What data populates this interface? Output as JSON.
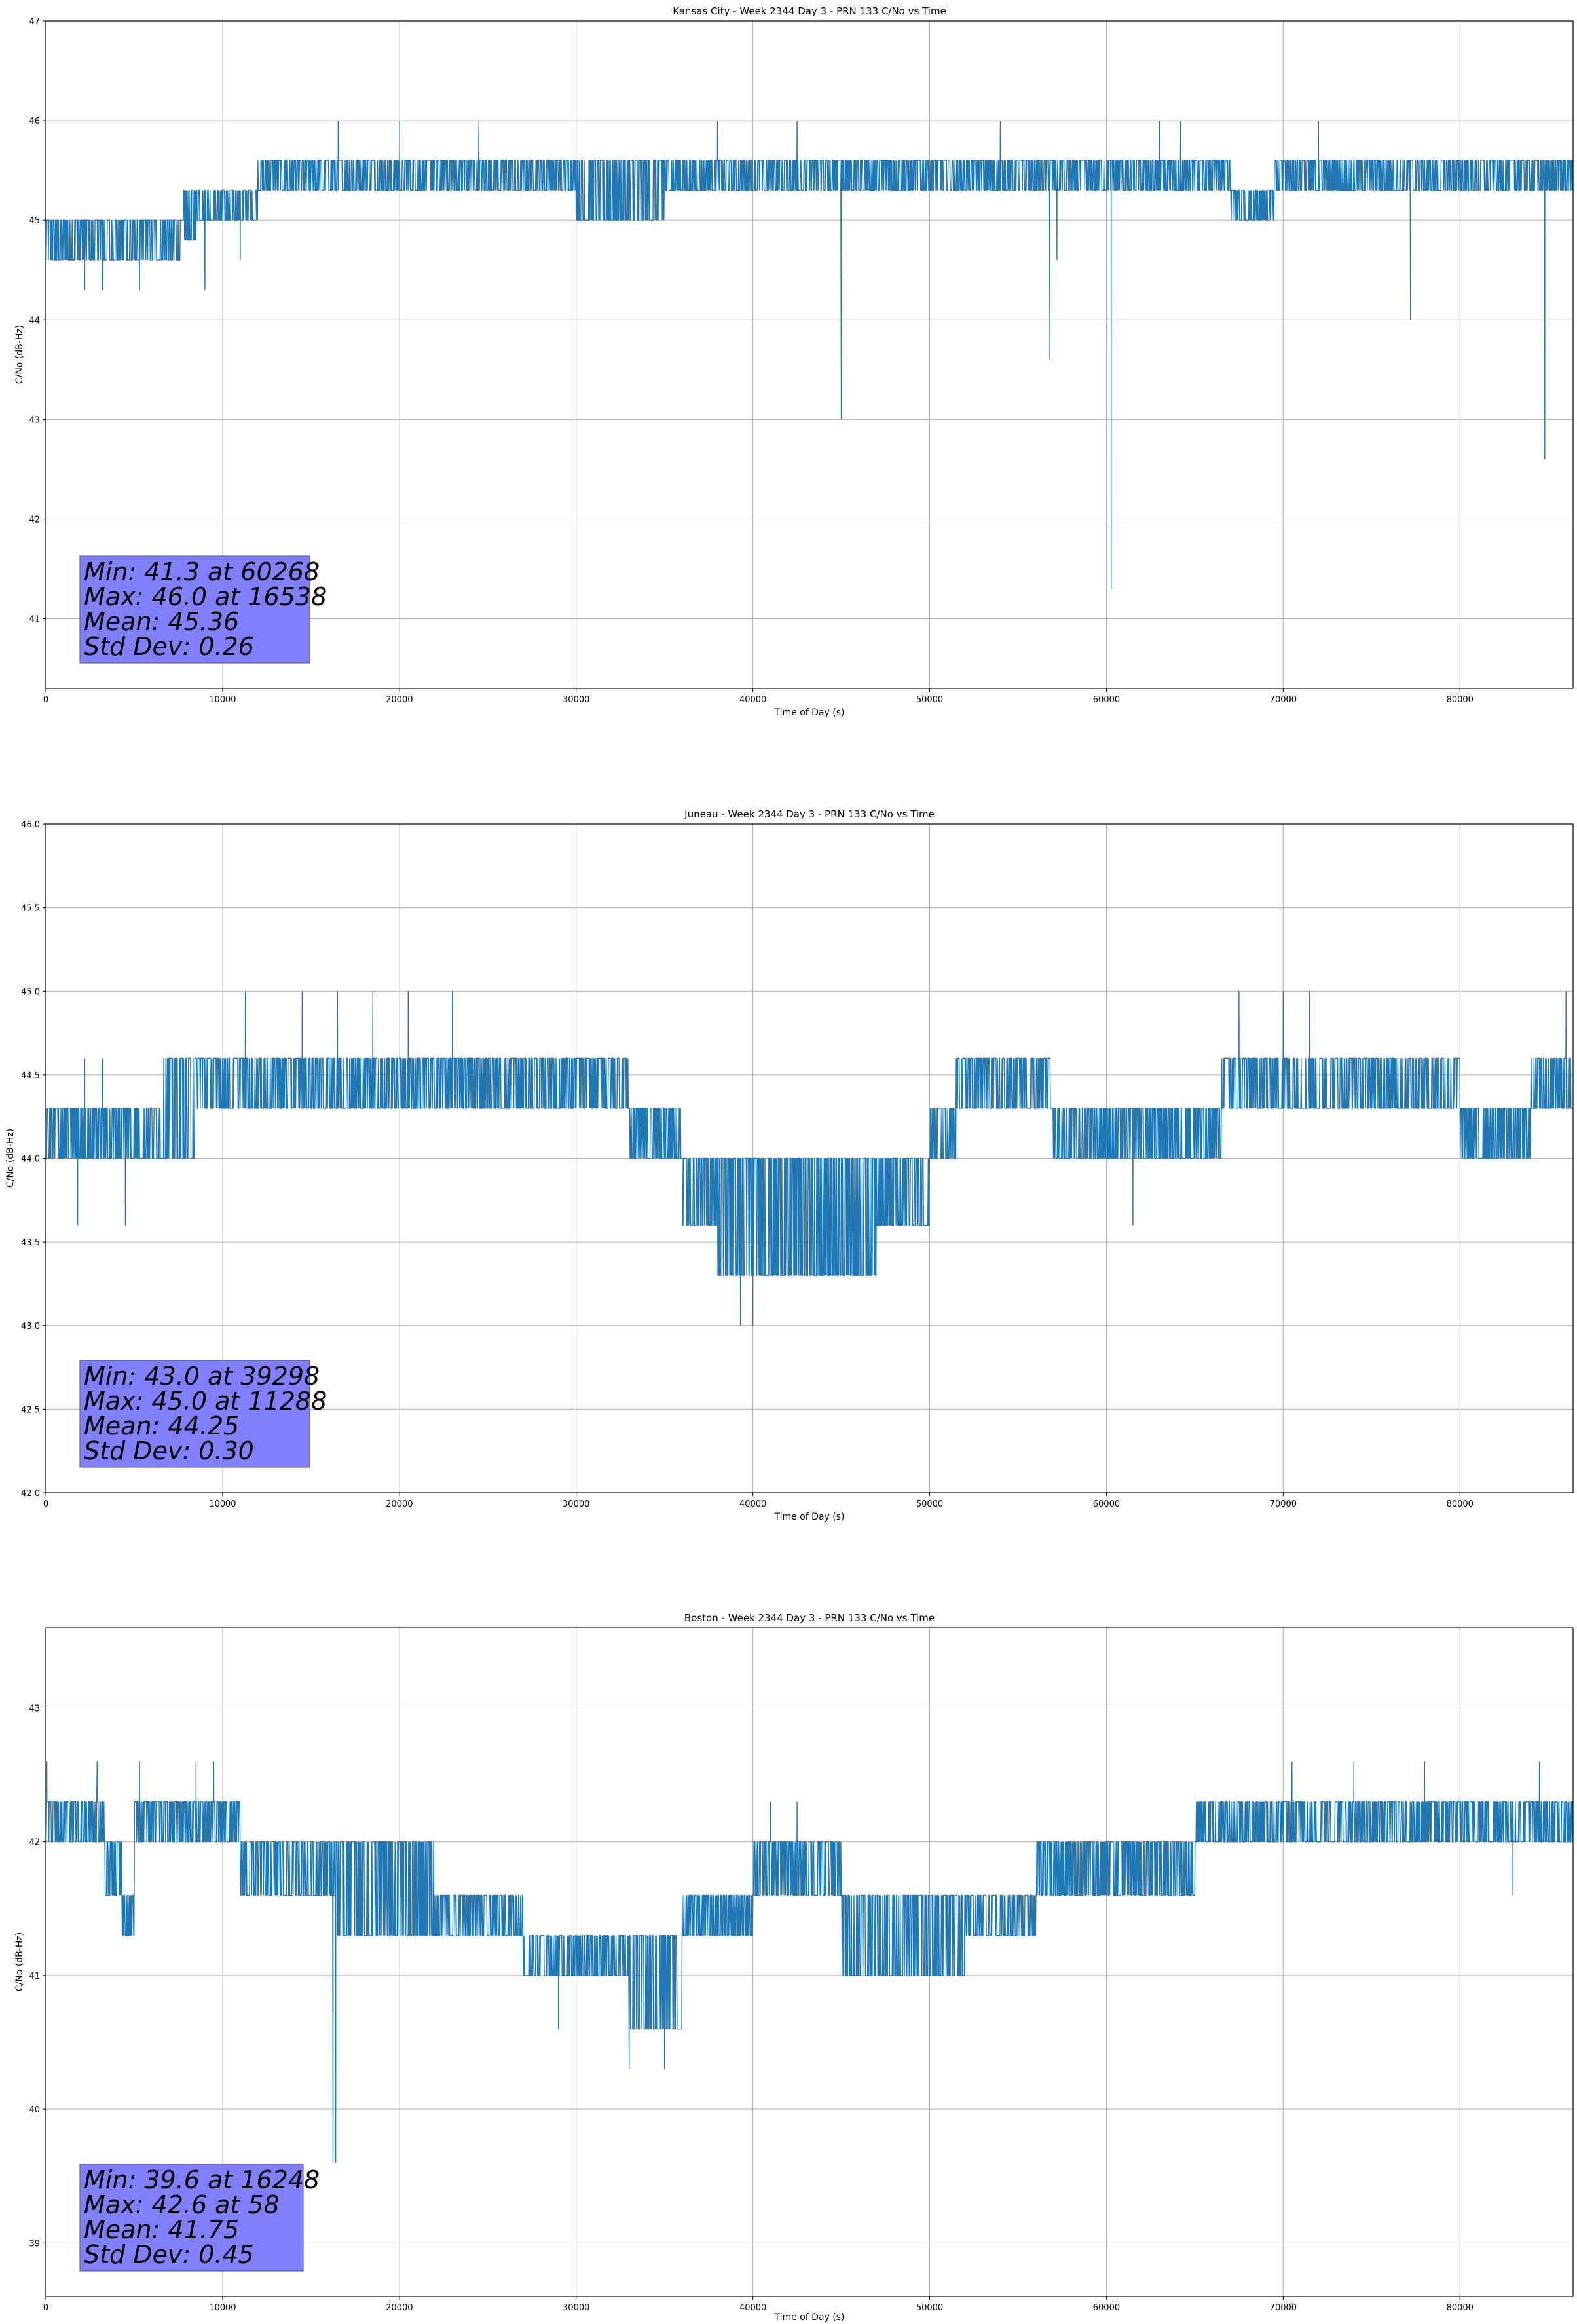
{
  "chart_data": [
    {
      "type": "line",
      "title": "Kansas City - Week 2344 Day 3 - PRN 133 C/No vs Time",
      "xlabel": "Time of Day (s)",
      "ylabel": "C/No (dB-Hz)",
      "xlim": [
        0,
        86400
      ],
      "ylim": [
        40.3,
        47
      ],
      "xticks": [
        0,
        10000,
        20000,
        30000,
        40000,
        50000,
        60000,
        70000,
        80000
      ],
      "xtick_labels": [
        "0",
        "10000",
        "20000",
        "30000",
        "40000",
        "50000",
        "60000",
        "70000",
        "80000"
      ],
      "yticks": [
        41,
        42,
        43,
        44,
        45,
        46,
        47
      ],
      "ytick_labels": [
        "41",
        "42",
        "43",
        "44",
        "45",
        "46",
        "47"
      ],
      "grid": true,
      "series": [
        {
          "name": "C/No",
          "color": "#1f77b4",
          "band": [
            [
              0,
              44.6,
              45.0
            ],
            [
              7800,
              44.8,
              45.3
            ],
            [
              8500,
              45.0,
              45.3
            ],
            [
              12000,
              45.3,
              45.6
            ],
            [
              24000,
              45.3,
              45.6
            ],
            [
              30000,
              45.0,
              45.6
            ],
            [
              35000,
              45.3,
              45.6
            ],
            [
              50000,
              45.3,
              45.6
            ],
            [
              63000,
              45.3,
              45.6
            ],
            [
              67000,
              45.0,
              45.3
            ],
            [
              69500,
              45.3,
              45.6
            ],
            [
              86400,
              45.3,
              45.6
            ]
          ],
          "excursions": [
            [
              2200,
              44.3
            ],
            [
              3200,
              44.3
            ],
            [
              5300,
              44.3
            ],
            [
              9000,
              44.3
            ],
            [
              11000,
              44.6
            ],
            [
              16538,
              46.0
            ],
            [
              20000,
              46.0
            ],
            [
              24500,
              46.0
            ],
            [
              38000,
              46.0
            ],
            [
              42500,
              46.0
            ],
            [
              45000,
              43.0
            ],
            [
              54000,
              46.0
            ],
            [
              56800,
              43.6
            ],
            [
              57200,
              44.6
            ],
            [
              60268,
              41.3
            ],
            [
              63000,
              46.0
            ],
            [
              64200,
              46.0
            ],
            [
              72000,
              46.0
            ],
            [
              77200,
              44.0
            ],
            [
              84800,
              42.6
            ]
          ]
        }
      ],
      "stats": [
        "Min: 41.3 at 60268",
        "Max: 46.0 at 16538",
        "Mean: 45.36",
        "Std Dev: 0.26"
      ],
      "stats_location": "lower-left"
    },
    {
      "type": "line",
      "title": "Juneau - Week 2344 Day 3 - PRN 133 C/No vs Time",
      "xlabel": "Time of Day (s)",
      "ylabel": "C/No (dB-Hz)",
      "xlim": [
        0,
        86400
      ],
      "ylim": [
        42.0,
        46.0
      ],
      "xticks": [
        0,
        10000,
        20000,
        30000,
        40000,
        50000,
        60000,
        70000,
        80000
      ],
      "xtick_labels": [
        "0",
        "10000",
        "20000",
        "30000",
        "40000",
        "50000",
        "60000",
        "70000",
        "80000"
      ],
      "yticks": [
        42.0,
        42.5,
        43.0,
        43.5,
        44.0,
        44.5,
        45.0,
        45.5,
        46.0
      ],
      "ytick_labels": [
        "42.0",
        "42.5",
        "43.0",
        "43.5",
        "44.0",
        "44.5",
        "45.0",
        "45.5",
        "46.0"
      ],
      "grid": true,
      "series": [
        {
          "name": "C/No",
          "color": "#1f77b4",
          "band": [
            [
              0,
              44.0,
              44.3
            ],
            [
              6500,
              44.0,
              44.6
            ],
            [
              8500,
              44.3,
              44.6
            ],
            [
              20000,
              44.3,
              44.6
            ],
            [
              21500,
              44.3,
              44.6
            ],
            [
              26000,
              44.3,
              44.6
            ],
            [
              33000,
              44.0,
              44.3
            ],
            [
              36000,
              43.6,
              44.0
            ],
            [
              38000,
              43.3,
              44.0
            ],
            [
              43000,
              43.3,
              44.0
            ],
            [
              47000,
              43.6,
              44.0
            ],
            [
              50000,
              44.0,
              44.3
            ],
            [
              51500,
              44.3,
              44.6
            ],
            [
              57000,
              44.0,
              44.3
            ],
            [
              66500,
              44.3,
              44.6
            ],
            [
              75000,
              44.3,
              44.6
            ],
            [
              80000,
              44.0,
              44.3
            ],
            [
              84000,
              44.3,
              44.6
            ],
            [
              86400,
              44.3,
              44.6
            ]
          ],
          "excursions": [
            [
              1800,
              43.6
            ],
            [
              2200,
              44.6
            ],
            [
              3200,
              44.6
            ],
            [
              4500,
              43.6
            ],
            [
              11288,
              45.0
            ],
            [
              14500,
              45.0
            ],
            [
              16500,
              45.0
            ],
            [
              18500,
              45.0
            ],
            [
              20500,
              45.0
            ],
            [
              23000,
              45.0
            ],
            [
              39298,
              43.0
            ],
            [
              40000,
              43.0
            ],
            [
              61500,
              43.6
            ],
            [
              67500,
              45.0
            ],
            [
              70000,
              45.0
            ],
            [
              71500,
              45.0
            ],
            [
              86000,
              45.0
            ]
          ]
        }
      ],
      "stats": [
        "Min: 43.0 at 39298",
        "Max: 45.0 at 11288",
        "Mean: 44.25",
        "Std Dev: 0.30"
      ],
      "stats_location": "lower-left"
    },
    {
      "type": "line",
      "title": "Boston - Week 2344 Day 3 - PRN 133 C/No vs Time",
      "xlabel": "Time of Day (s)",
      "ylabel": "C/No (dB-Hz)",
      "xlim": [
        0,
        86400
      ],
      "ylim": [
        38.6,
        43.6
      ],
      "xticks": [
        0,
        10000,
        20000,
        30000,
        40000,
        50000,
        60000,
        70000,
        80000
      ],
      "xtick_labels": [
        "0",
        "10000",
        "20000",
        "30000",
        "40000",
        "50000",
        "60000",
        "70000",
        "80000"
      ],
      "yticks": [
        39,
        40,
        41,
        42,
        43
      ],
      "ytick_labels": [
        "39",
        "40",
        "41",
        "42",
        "43"
      ],
      "grid": true,
      "series": [
        {
          "name": "C/No",
          "color": "#1f77b4",
          "band": [
            [
              0,
              42.0,
              42.3
            ],
            [
              3300,
              41.6,
              42.0
            ],
            [
              4300,
              41.3,
              41.6
            ],
            [
              5000,
              42.0,
              42.3
            ],
            [
              10000,
              42.0,
              42.3
            ],
            [
              11000,
              41.6,
              42.0
            ],
            [
              16500,
              41.3,
              42.0
            ],
            [
              22000,
              41.3,
              41.6
            ],
            [
              27000,
              41.0,
              41.3
            ],
            [
              33000,
              40.6,
              41.3
            ],
            [
              36000,
              41.3,
              41.6
            ],
            [
              40000,
              41.6,
              42.0
            ],
            [
              45000,
              41.0,
              41.6
            ],
            [
              52000,
              41.3,
              41.6
            ],
            [
              55000,
              41.3,
              41.6
            ],
            [
              56000,
              41.6,
              42.0
            ],
            [
              65000,
              42.0,
              42.3
            ],
            [
              86400,
              42.0,
              42.3
            ]
          ],
          "excursions": [
            [
              58,
              42.6
            ],
            [
              2900,
              42.6
            ],
            [
              5300,
              42.6
            ],
            [
              8500,
              42.6
            ],
            [
              9500,
              42.6
            ],
            [
              16248,
              39.6
            ],
            [
              16400,
              39.6
            ],
            [
              29000,
              40.6
            ],
            [
              33000,
              40.3
            ],
            [
              35000,
              40.3
            ],
            [
              41000,
              42.3
            ],
            [
              42500,
              42.3
            ],
            [
              70500,
              42.6
            ],
            [
              74000,
              42.6
            ],
            [
              78000,
              42.6
            ],
            [
              83000,
              41.6
            ],
            [
              84500,
              42.6
            ]
          ]
        }
      ],
      "stats": [
        "Min: 39.6 at 16248",
        "Max: 42.6 at 58",
        "Mean: 41.75",
        "Std Dev: 0.45"
      ],
      "stats_location": "lower-left"
    }
  ]
}
